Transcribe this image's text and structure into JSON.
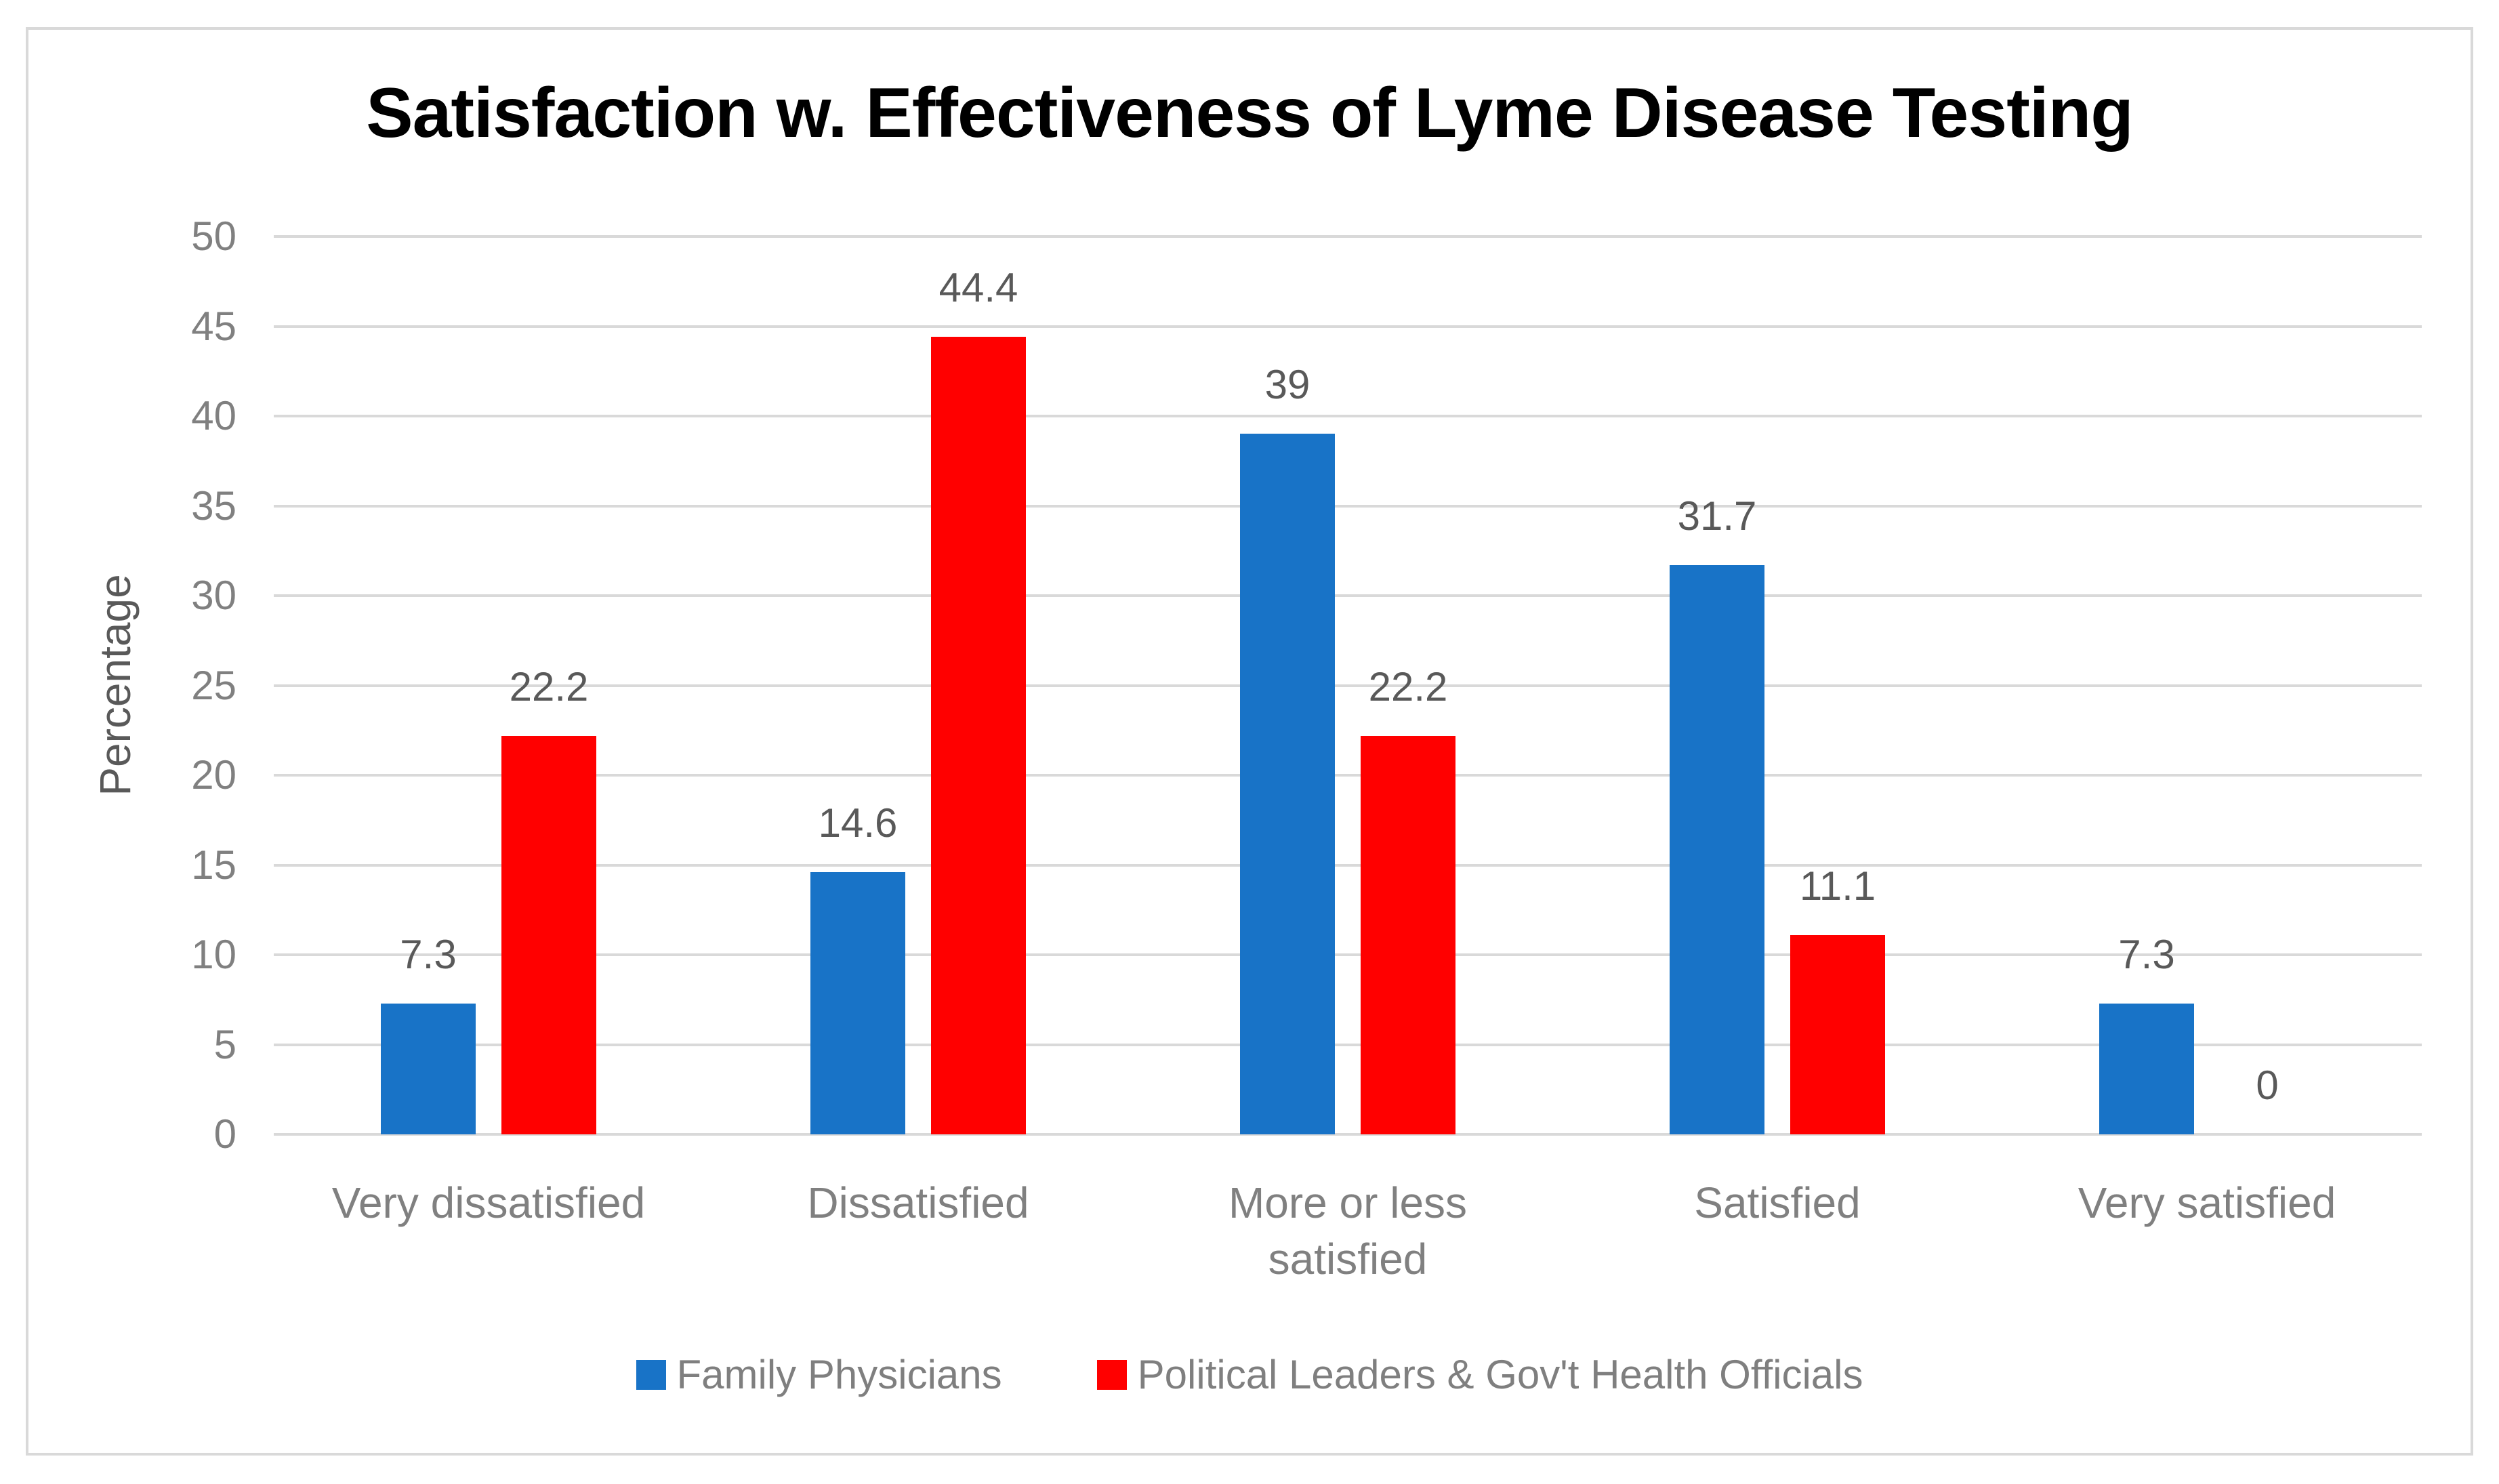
{
  "chart_data": {
    "type": "bar",
    "title": "Satisfaction w. Effectiveness of Lyme Disease Testing",
    "ylabel": "Percentage",
    "xlabel": "",
    "categories": [
      "Very dissatisfied",
      "Dissatisfied",
      "More or less satisfied",
      "Satisfied",
      "Very satisfied"
    ],
    "series": [
      {
        "name": "Family Physicians",
        "color": "#1873C7",
        "values": [
          7.3,
          14.6,
          39,
          31.7,
          7.3
        ]
      },
      {
        "name": "Political Leaders & Gov't Health Officials",
        "color": "#FF0000",
        "values": [
          22.2,
          44.4,
          22.2,
          11.1,
          0
        ]
      }
    ],
    "ylim": [
      0,
      50
    ],
    "yticks": [
      0,
      5,
      10,
      15,
      20,
      25,
      30,
      35,
      40,
      45,
      50
    ],
    "grid": true,
    "data_labels": true,
    "legend_position": "bottom",
    "styles": {
      "title_color": "#000000",
      "tick_label_color": "#808080",
      "category_label_color": "#808080",
      "axis_title_color": "#595959",
      "data_label_color": "#595959",
      "legend_text_color": "#7F7F7F",
      "gridline_color": "#D9D9D9",
      "border_color": "#D9D9D9",
      "background_color": "#FFFFFF"
    }
  }
}
